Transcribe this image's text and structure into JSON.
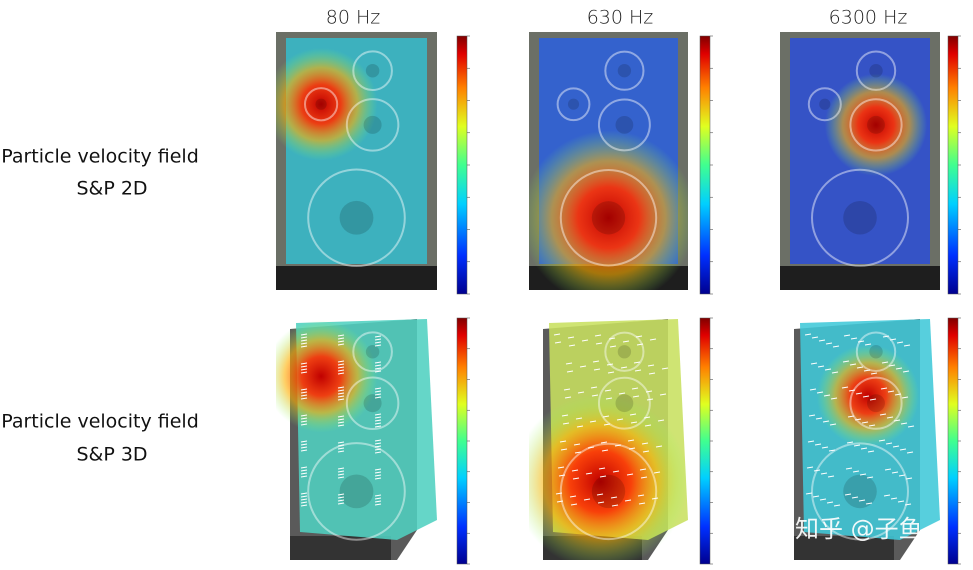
{
  "columns": [
    "80 Hz",
    "630 Hz",
    "6300 Hz"
  ],
  "rows": [
    {
      "line1": "Particle velocity field",
      "line2": "S&P 2D"
    },
    {
      "line1": "Particle velocity field",
      "line2": "S&P 3D"
    }
  ],
  "watermark": "知乎 @子鱼"
}
